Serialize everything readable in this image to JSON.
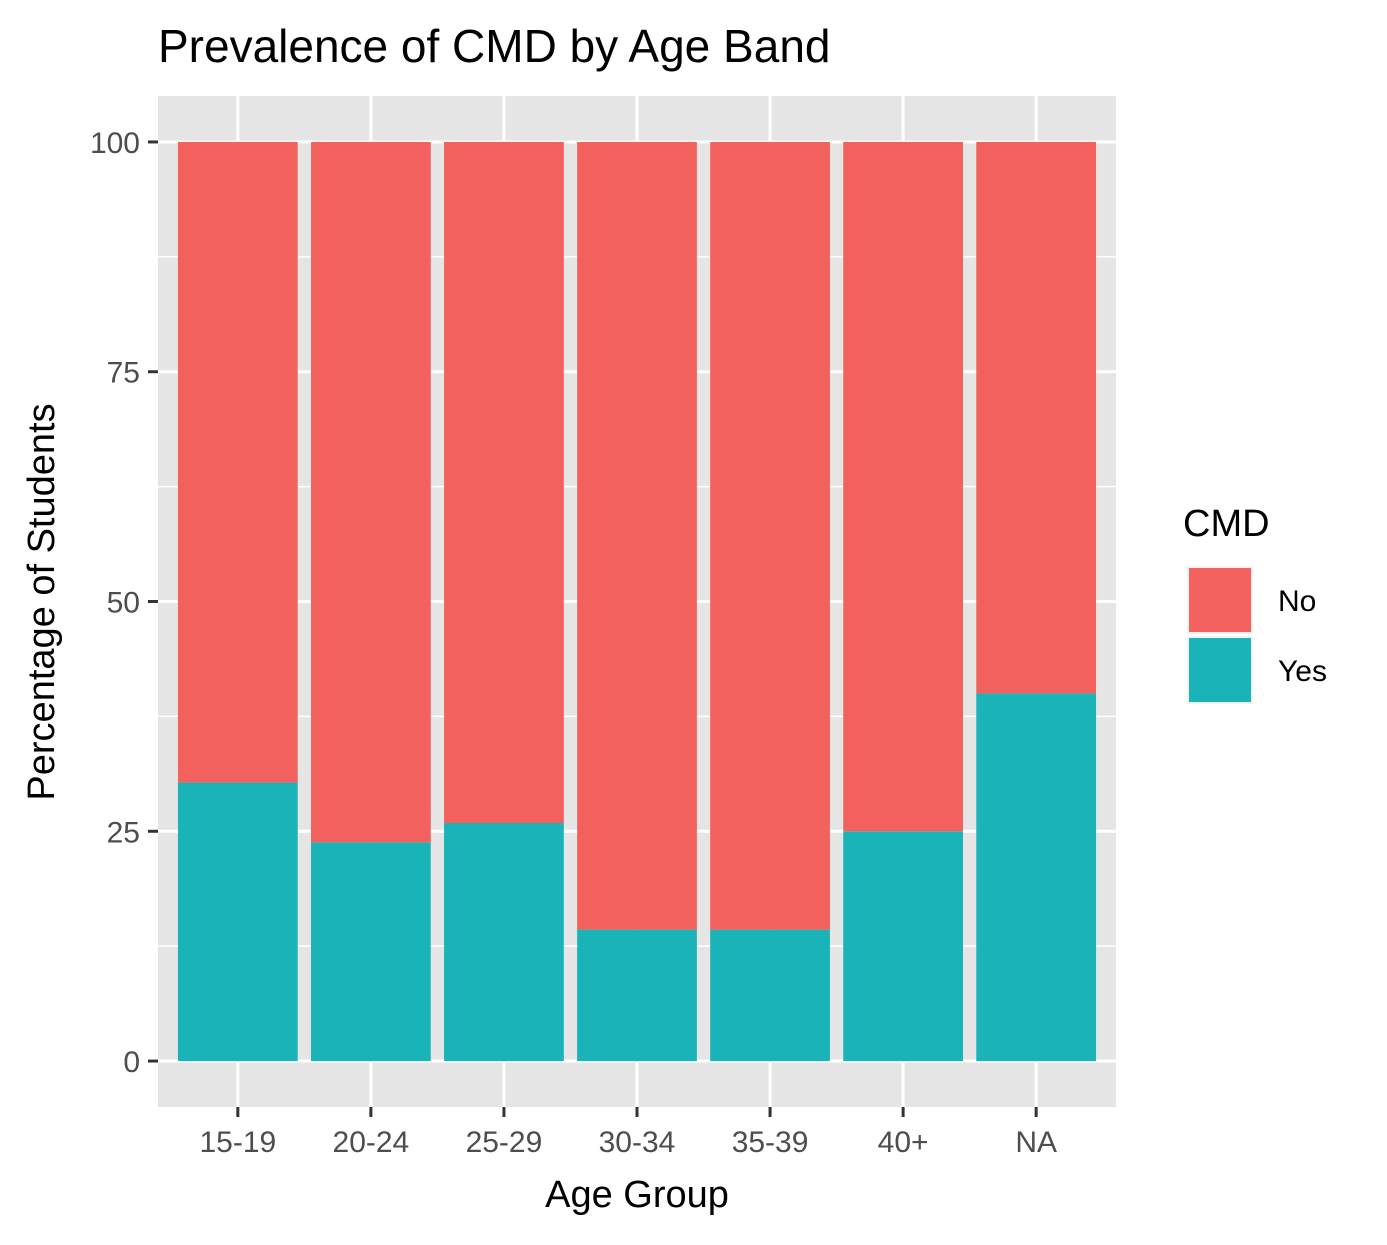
{
  "chart_data": {
    "type": "bar",
    "stacked": true,
    "title": "Prevalence of CMD by Age Band",
    "xlabel": "Age Group",
    "ylabel": "Percentage of Students",
    "categories": [
      "15-19",
      "20-24",
      "25-29",
      "30-34",
      "35-39",
      "40+",
      "NA"
    ],
    "series": [
      {
        "name": "No",
        "color": "#F2615D",
        "values": [
          69.7,
          76.2,
          74.1,
          85.7,
          85.7,
          75.0,
          60.0
        ]
      },
      {
        "name": "Yes",
        "color": "#1AB3B7",
        "values": [
          30.3,
          23.8,
          25.9,
          14.3,
          14.3,
          25.0,
          40.0
        ]
      }
    ],
    "stack_order": [
      "Yes",
      "No"
    ],
    "ylim": [
      -5,
      105
    ],
    "yticks": [
      0,
      25,
      50,
      75,
      100
    ],
    "y_minor_ticks": [
      12.5,
      37.5,
      62.5,
      87.5
    ],
    "grid": true,
    "panel_background": "#E5E5E5",
    "grid_color": "#FFFFFF",
    "legend": {
      "title": "CMD",
      "position": "right",
      "items": [
        {
          "label": "No",
          "color": "#F2615D"
        },
        {
          "label": "Yes",
          "color": "#1AB3B7"
        }
      ]
    }
  }
}
